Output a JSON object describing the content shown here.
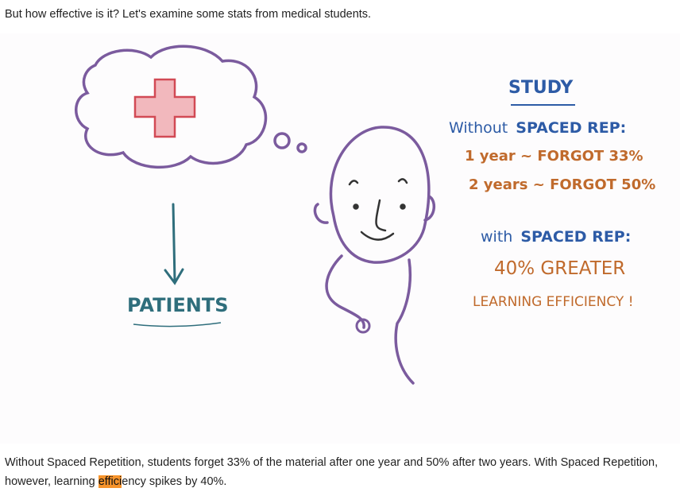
{
  "intro": "But how effective is it? Let's examine some stats from medical students.",
  "illustration": {
    "left_label": "PATIENTS",
    "title": "STUDY",
    "without_line": {
      "prefix": "Without",
      "emph": "SPACED REP:"
    },
    "stat_1": "1 year ~ FORGOT 33%",
    "stat_2": "2 years ~ FORGOT 50%",
    "with_line": {
      "prefix": "with",
      "emph": "SPACED REP:"
    },
    "result_1": "40% GREATER",
    "result_2": "LEARNING EFFICIENCY !",
    "colors": {
      "blue": "#2d5ba6",
      "orange": "#c06a2c",
      "purple": "#7b5b9e",
      "teal": "#2f6e7c",
      "cross": "#f2b8bd"
    }
  },
  "summary": {
    "before": "Without Spaced Repetition, students forget 33% of the material after one year and 50% after two years. With Spaced Repetition, however, learning ",
    "highlight": "effici",
    "after": "ency spikes by 40%."
  }
}
